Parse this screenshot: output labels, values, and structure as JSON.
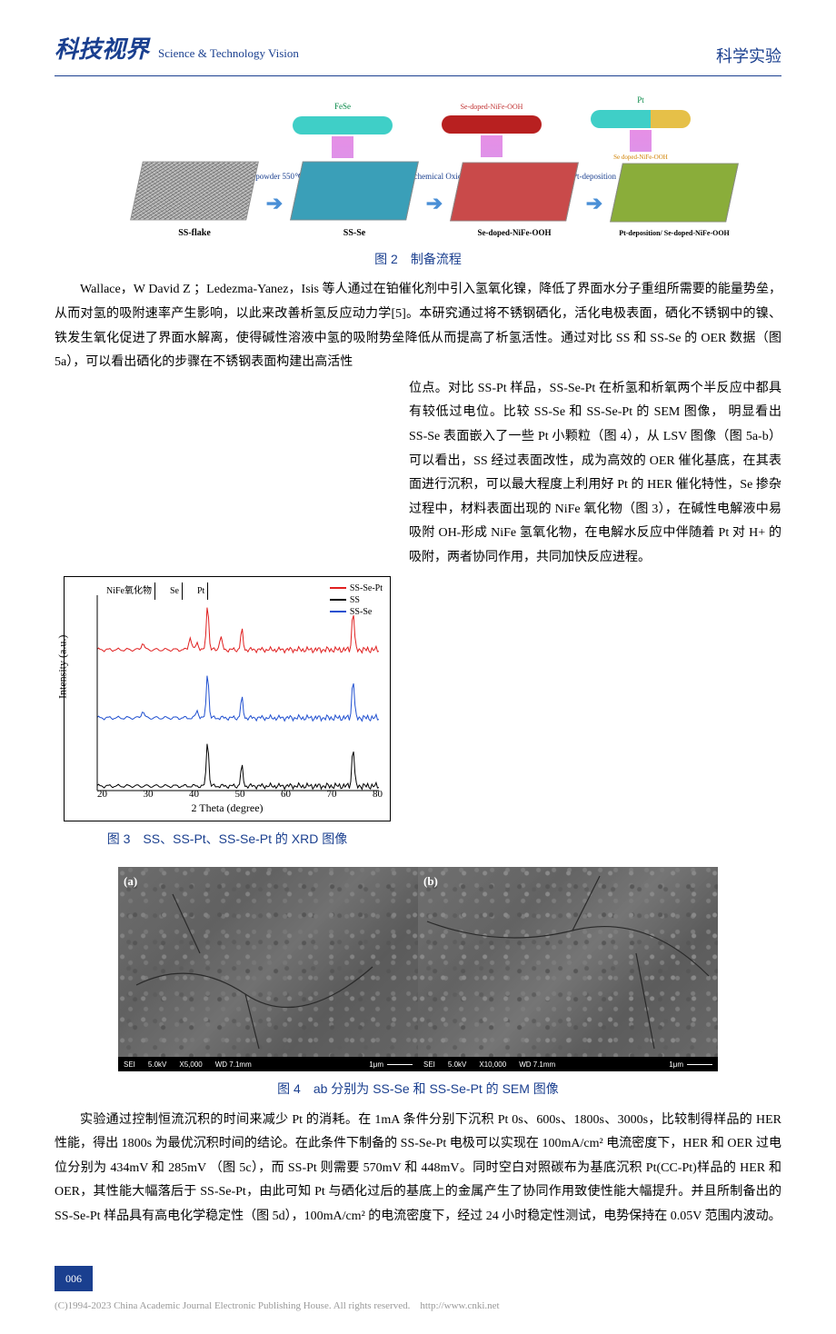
{
  "header": {
    "journal_cn": "科技视界",
    "journal_en": "Science & Technology Vision",
    "section": "科学实验"
  },
  "fig2": {
    "caption": "图 2　制备流程",
    "tubes": [
      {
        "label_top": "FeSe",
        "label_side": "",
        "color": "#3fcfc7"
      },
      {
        "label_top": "Se-doped-NiFe-OOH",
        "label_side": "",
        "color": "#b82020"
      },
      {
        "label_top": "Pt",
        "label_side": "Se doped-NiFe-OOH",
        "color": "#3fcfc7"
      }
    ],
    "cone_gradient_top": "#e68fe6",
    "cone_gradient_mid": "#8fb4ff",
    "cone_gradient_bot": "#3a5fe0",
    "arrows": [
      {
        "label": "Se powder 550℃"
      },
      {
        "label": "Electrochemical Oxidation"
      },
      {
        "label": "Pt-deposition"
      }
    ],
    "plates": [
      {
        "label": "SS-flake",
        "color": "#bcbcbc",
        "mesh": true
      },
      {
        "label": "SS-Se",
        "color": "#3a9fb8",
        "mesh": false
      },
      {
        "label": "Se-doped-NiFe-OOH",
        "color": "#c94a4a",
        "mesh": false
      },
      {
        "label": "Pt-deposition/ Se-doped-NiFe-OOH",
        "color": "#8aad3a",
        "mesh": false
      }
    ],
    "arrow_color": "#4a8fd6"
  },
  "para1": "Wallace，W David Z ；Ledezma-Yanez，Isis 等人通过在铂催化剂中引入氢氧化镍，降低了界面水分子重组所需要的能量势垒，从而对氢的吸附速率产生影响，以此来改善析氢反应动力学[5]。本研究通过将不锈钢硒化，活化电极表面，硒化不锈钢中的镍、铁发生氧化促进了界面水解离，使得碱性溶液中氢的吸附势垒降低从而提高了析氢活性。通过对比 SS 和 SS-Se 的 OER 数据（图 5a），可以看出硒化的步骤在不锈钢表面构建出高活性",
  "para_right": "位点。对比 SS-Pt 样品，SS-Se-Pt 在析氢和析氧两个半反应中都具有较低过电位。比较 SS-Se 和 SS-Se-Pt 的 SEM 图像， 明显看出 SS-Se 表面嵌入了一些 Pt 小颗粒（图 4），从 LSV 图像（图 5a-b）可以看出，SS 经过表面改性，成为高效的 OER 催化基底，在其表面进行沉积，可以最大程度上利用好 Pt 的 HER 催化特性，Se 掺杂过程中，材料表面出现的 NiFe 氧化物（图 3），在碱性电解液中易吸附 OH-形成 NiFe 氢氧化物，在电解水反应中伴随着 Pt 对 H+ 的吸附，两者协同作用，共同加快反应进程。",
  "fig3": {
    "caption": "图 3　SS、SS-Pt、SS-Se-Pt 的 XRD 图像",
    "ylabel": "Intensity (a.u.)",
    "xlabel": "2 Theta (degree)",
    "xlim": [
      20,
      80
    ],
    "xticks": [
      20,
      30,
      40,
      50,
      60,
      70,
      80
    ],
    "peak_labels": [
      "NiFe氧化物",
      "Se",
      "Pt"
    ],
    "legend": [
      {
        "name": "SS-Se-Pt",
        "color": "#e02020"
      },
      {
        "name": "SS",
        "color": "#000000"
      },
      {
        "name": "SS-Se",
        "color": "#2050d0"
      }
    ],
    "colors": {
      "ss_se_pt": "#e02020",
      "ss": "#000000",
      "ss_se": "#2050d0"
    },
    "baselines": {
      "ss_se_pt": 60,
      "ss_se": 135,
      "ss": 210
    },
    "major_peaks_x": [
      43.5,
      50.8,
      74.5
    ],
    "pt_peaks_x": [
      39.8,
      46.3
    ],
    "se_peaks_x": [
      29.7,
      41.3
    ]
  },
  "fig4": {
    "caption": "图 4　ab 分别为 SS-Se 和 SS-Se-Pt 的 SEM 图像",
    "panels": [
      {
        "tag": "(a)",
        "bar": {
          "mode": "SEI",
          "kv": "5.0kV",
          "mag": "X5,000",
          "wd": "WD 7.1mm",
          "scale": "1μm"
        }
      },
      {
        "tag": "(b)",
        "bar": {
          "mode": "SEI",
          "kv": "5.0kV",
          "mag": "X10,000",
          "wd": "WD 7.1mm",
          "scale": "1μm"
        }
      }
    ],
    "bg_base": "#6a6a6a",
    "crack_color": "#2a2a2a"
  },
  "para2": "实验通过控制恒流沉积的时间来减少 Pt 的消耗。在 1mA 条件分别下沉积 Pt 0s、600s、1800s、3000s，比较制得样品的 HER 性能，得出 1800s 为最优沉积时间的结论。在此条件下制备的 SS-Se-Pt 电极可以实现在 100mA/cm² 电流密度下，HER 和 OER 过电位分别为 434mV 和 285mV （图 5c），而 SS-Pt 则需要 570mV 和 448mV。同时空白对照碳布为基底沉积 Pt(CC-Pt)样品的 HER 和 OER，其性能大幅落后于 SS-Se-Pt，由此可知 Pt 与硒化过后的基底上的金属产生了协同作用致使性能大幅提升。并且所制备出的 SS-Se-Pt 样品具有高电化学稳定性（图 5d），100mA/cm² 的电流密度下，经过 24 小时稳定性测试，电势保持在 0.05V 范围内波动。",
  "page": "006",
  "footer": "(C)1994-2023 China Academic Journal Electronic Publishing House. All rights reserved.　http://www.cnki.net"
}
